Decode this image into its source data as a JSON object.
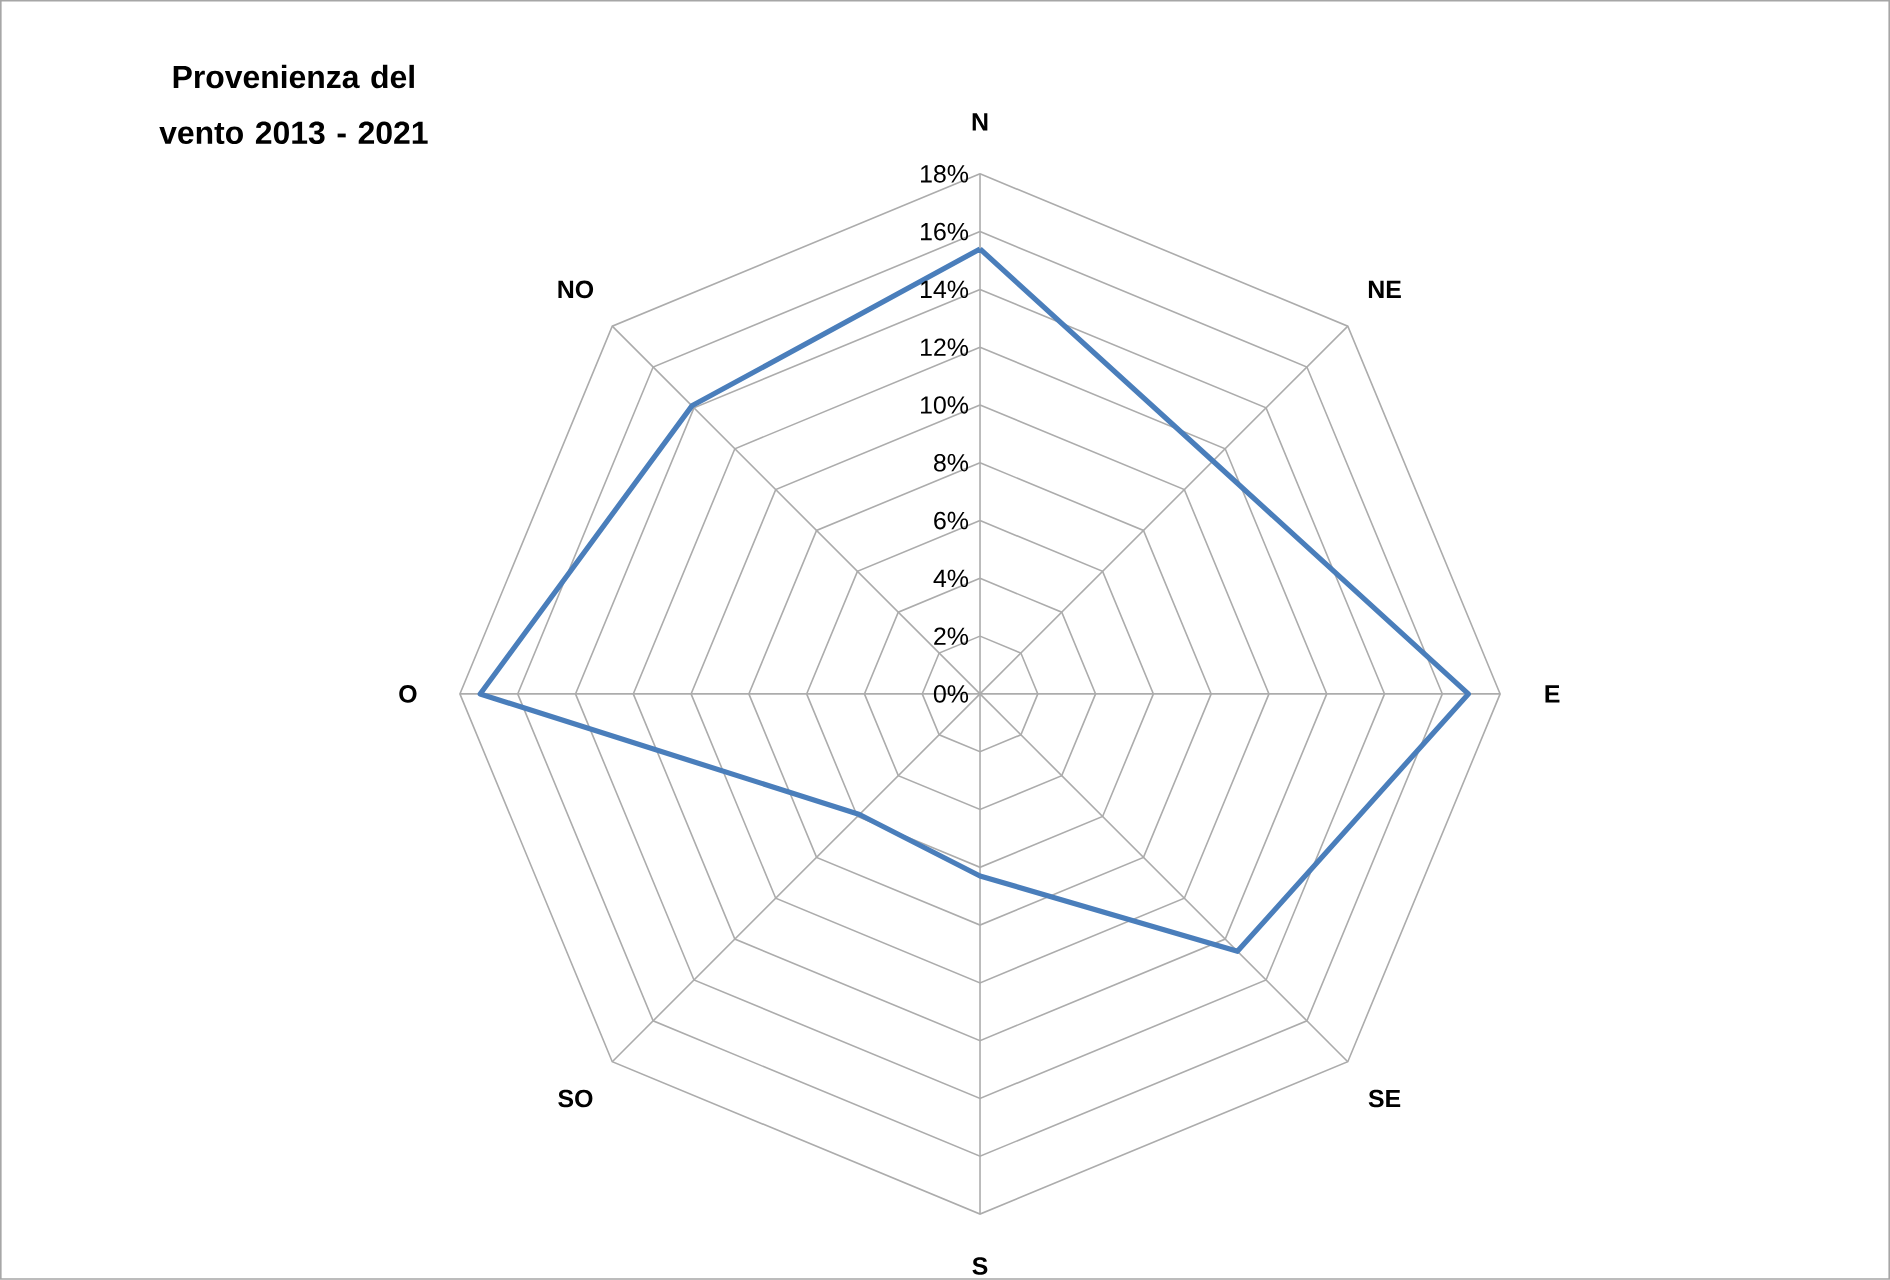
{
  "chart_data": {
    "type": "radar",
    "title": "Provenienza del vento 2013 - 2021",
    "categories": [
      "N",
      "NE",
      "E",
      "SE",
      "S",
      "SO",
      "O",
      "NO"
    ],
    "series": [
      {
        "color": "#4a7ebb",
        "values": [
          15.4,
          11.4,
          16.9,
          12.6,
          6.3,
          5.9,
          17.3,
          14.1
        ]
      }
    ],
    "ylim": [
      0,
      18
    ],
    "yticks": [
      {
        "value": 0,
        "label": "0%"
      },
      {
        "value": 2,
        "label": "2%"
      },
      {
        "value": 4,
        "label": "4%"
      },
      {
        "value": 6,
        "label": "6%"
      },
      {
        "value": 8,
        "label": "8%"
      },
      {
        "value": 10,
        "label": "10%"
      },
      {
        "value": 12,
        "label": "12%"
      },
      {
        "value": 14,
        "label": "14%"
      },
      {
        "value": 16,
        "label": "16%"
      },
      {
        "value": 18,
        "label": "18%"
      }
    ],
    "grid": true
  }
}
